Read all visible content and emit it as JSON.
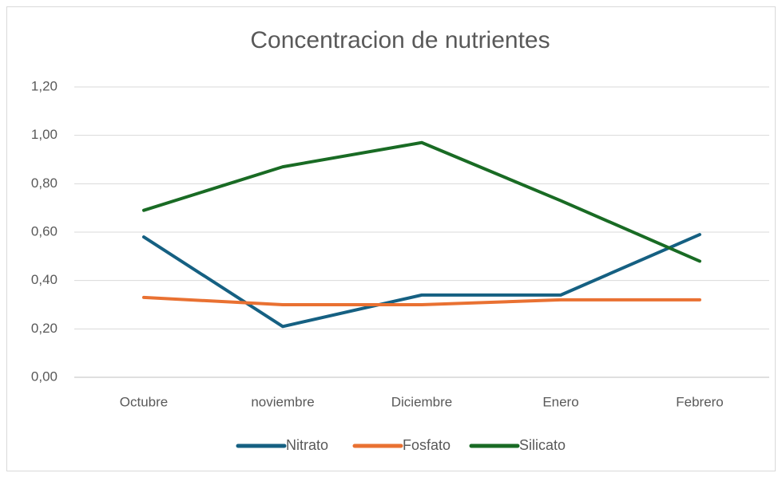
{
  "chart_data": {
    "type": "line",
    "title": "Concentracion de nutrientes",
    "categories": [
      "Octubre",
      "noviembre",
      "Diciembre",
      "Enero",
      "Febrero"
    ],
    "series": [
      {
        "name": "Nitrato",
        "color": "#156082",
        "values": [
          0.58,
          0.21,
          0.34,
          0.34,
          0.59
        ]
      },
      {
        "name": "Fosfato",
        "color": "#E97132",
        "values": [
          0.33,
          0.3,
          0.3,
          0.32,
          0.32
        ]
      },
      {
        "name": "Silicato",
        "color": "#196B24",
        "values": [
          0.69,
          0.87,
          0.97,
          0.73,
          0.48
        ]
      }
    ],
    "ylim": [
      0,
      1.2
    ],
    "yticks": [
      {
        "value": 0,
        "label": "0,00"
      },
      {
        "value": 0.2,
        "label": "0,20"
      },
      {
        "value": 0.4,
        "label": "0,40"
      },
      {
        "value": 0.6,
        "label": "0,60"
      },
      {
        "value": 0.8,
        "label": "0,80"
      },
      {
        "value": 1.0,
        "label": "1,00"
      },
      {
        "value": 1.2,
        "label": "1,20"
      }
    ],
    "grid": true,
    "legend": "bottom"
  }
}
